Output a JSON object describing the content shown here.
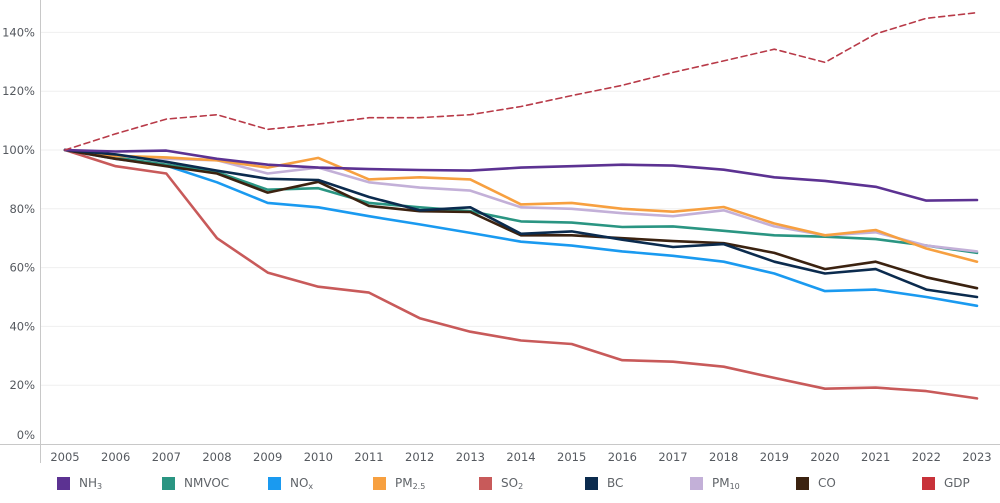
{
  "chart_data": {
    "type": "line",
    "title": "",
    "xlabel": "",
    "ylabel": "",
    "x": [
      "2005",
      "2006",
      "2007",
      "2008",
      "2009",
      "2010",
      "2011",
      "2012",
      "2013",
      "2014",
      "2015",
      "2016",
      "2017",
      "2018",
      "2019",
      "2020",
      "2021",
      "2022",
      "2023"
    ],
    "ylim": [
      0,
      150
    ],
    "yticks": [
      0,
      20,
      40,
      60,
      80,
      100,
      120,
      140
    ],
    "ytick_labels": [
      "0%",
      "20%",
      "40%",
      "60%",
      "80%",
      "100%",
      "120%",
      "140%"
    ],
    "grid": true,
    "legend_position": "bottom",
    "series": [
      {
        "name": "NH3",
        "label_main": "NH",
        "label_sub": "3",
        "color": "#5c3292",
        "dashed": false,
        "values": [
          100,
          99.5,
          99.8,
          97,
          95,
          94,
          93.5,
          93.2,
          93,
          94,
          94.5,
          95,
          94.7,
          93.3,
          90.7,
          89.5,
          87.5,
          82.8,
          83
        ]
      },
      {
        "name": "NMVOC",
        "label_main": "NMVOC",
        "label_sub": "",
        "color": "#2a9582",
        "dashed": false,
        "values": [
          100,
          97.5,
          95,
          92.5,
          86.5,
          87,
          82,
          80.5,
          79.2,
          75.7,
          75.3,
          73.8,
          74,
          72.5,
          71,
          70.5,
          69.7,
          67.5,
          65
        ]
      },
      {
        "name": "NOx",
        "label_main": "NO",
        "label_sub": "x",
        "color": "#1a9af0",
        "dashed": false,
        "values": [
          100,
          97,
          94.7,
          89,
          82,
          80.5,
          77.5,
          74.7,
          71.8,
          68.8,
          67.5,
          65.5,
          64,
          62,
          58,
          52,
          52.5,
          50,
          47
        ]
      },
      {
        "name": "PM2.5",
        "label_main": "PM",
        "label_sub": "2.5",
        "color": "#f7a040",
        "dashed": false,
        "values": [
          100,
          98,
          97.5,
          96.5,
          94,
          97.3,
          90,
          90.7,
          90,
          81.5,
          82,
          80,
          79,
          80.6,
          75,
          71,
          72.8,
          66.5,
          62
        ]
      },
      {
        "name": "SO2",
        "label_main": "SO",
        "label_sub": "2",
        "color": "#c85a5a",
        "dashed": false,
        "values": [
          100,
          94.5,
          92,
          70,
          58.3,
          53.5,
          51.5,
          42.8,
          38.2,
          35.2,
          34,
          28.5,
          28,
          26.3,
          22.5,
          18.8,
          19.2,
          18,
          15.5
        ]
      },
      {
        "name": "BC",
        "label_main": "BC",
        "label_sub": "",
        "color": "#0b2b4e",
        "dashed": false,
        "values": [
          100,
          98.5,
          96,
          93,
          90.2,
          89.8,
          84,
          79.5,
          80.5,
          71.5,
          72.3,
          69.5,
          67,
          68,
          62,
          58,
          59.5,
          52.5,
          50
        ]
      },
      {
        "name": "PM10",
        "label_main": "PM",
        "label_sub": "10",
        "color": "#c3b0d8",
        "dashed": false,
        "values": [
          100,
          98,
          97,
          96.5,
          92,
          94,
          89,
          87.2,
          86.2,
          80.5,
          80,
          78.5,
          77.5,
          79.5,
          74,
          71,
          72,
          67.5,
          65.5
        ]
      },
      {
        "name": "CO",
        "label_main": "CO",
        "label_sub": "",
        "color": "#3b2210",
        "dashed": false,
        "values": [
          100,
          97,
          94.5,
          92,
          85.5,
          89.2,
          81,
          79.2,
          78.9,
          71,
          71,
          70,
          69,
          68.3,
          65,
          59.5,
          62,
          56.7,
          53
        ]
      },
      {
        "name": "GDP",
        "label_main": "GDP",
        "label_sub": "",
        "color": "#b83a48",
        "legend_color": "#c8323a",
        "dashed": true,
        "values": [
          100,
          105.5,
          110.5,
          112,
          107,
          108.8,
          111,
          111,
          112,
          114.8,
          118.5,
          122,
          126.4,
          130.3,
          134.3,
          129.8,
          139.5,
          144.8,
          146.7
        ]
      }
    ]
  }
}
